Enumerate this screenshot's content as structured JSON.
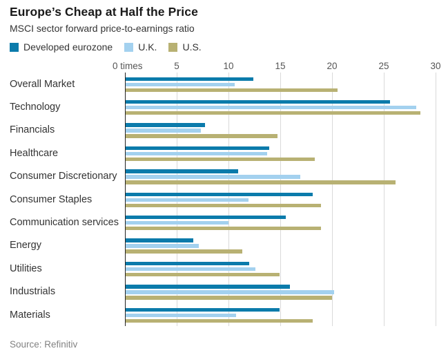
{
  "header": {
    "title": "Europe’s Cheap at Half the Price",
    "subtitle": "MSCI sector forward price-to-earnings ratio"
  },
  "source": "Source: Refinitiv",
  "chart_data": {
    "type": "bar",
    "orientation": "horizontal",
    "title": "Europe’s Cheap at Half the Price",
    "subtitle": "MSCI sector forward price-to-earnings ratio",
    "unit": "times",
    "categories": [
      "Overall Market",
      "Technology",
      "Financials",
      "Healthcare",
      "Consumer Discretionary",
      "Consumer Staples",
      "Communication services",
      "Energy",
      "Utilities",
      "Industrials",
      "Materials"
    ],
    "series": [
      {
        "name": "Developed eurozone",
        "color": "#0b7bab",
        "values": [
          12.4,
          25.6,
          7.7,
          13.9,
          10.9,
          18.1,
          15.5,
          6.6,
          12.0,
          15.9,
          14.9
        ]
      },
      {
        "name": "U.K.",
        "color": "#a3d1ef",
        "values": [
          10.6,
          28.1,
          7.3,
          13.7,
          16.9,
          11.9,
          10.0,
          7.1,
          12.6,
          20.2,
          10.7
        ]
      },
      {
        "name": "U.S.",
        "color": "#b8b173",
        "values": [
          20.5,
          28.5,
          14.7,
          18.3,
          26.1,
          18.9,
          18.9,
          11.3,
          14.9,
          20.0,
          18.1
        ]
      }
    ],
    "xlim": [
      0,
      30
    ],
    "xticks": [
      0,
      5,
      10,
      15,
      20,
      25,
      30
    ],
    "xtick_labels": [
      "0 times",
      "5",
      "10",
      "15",
      "20",
      "25",
      "30"
    ],
    "grid": true,
    "legend_position": "top-left",
    "gridline_color": "#d9d9d9",
    "axis_color": "#222222"
  }
}
